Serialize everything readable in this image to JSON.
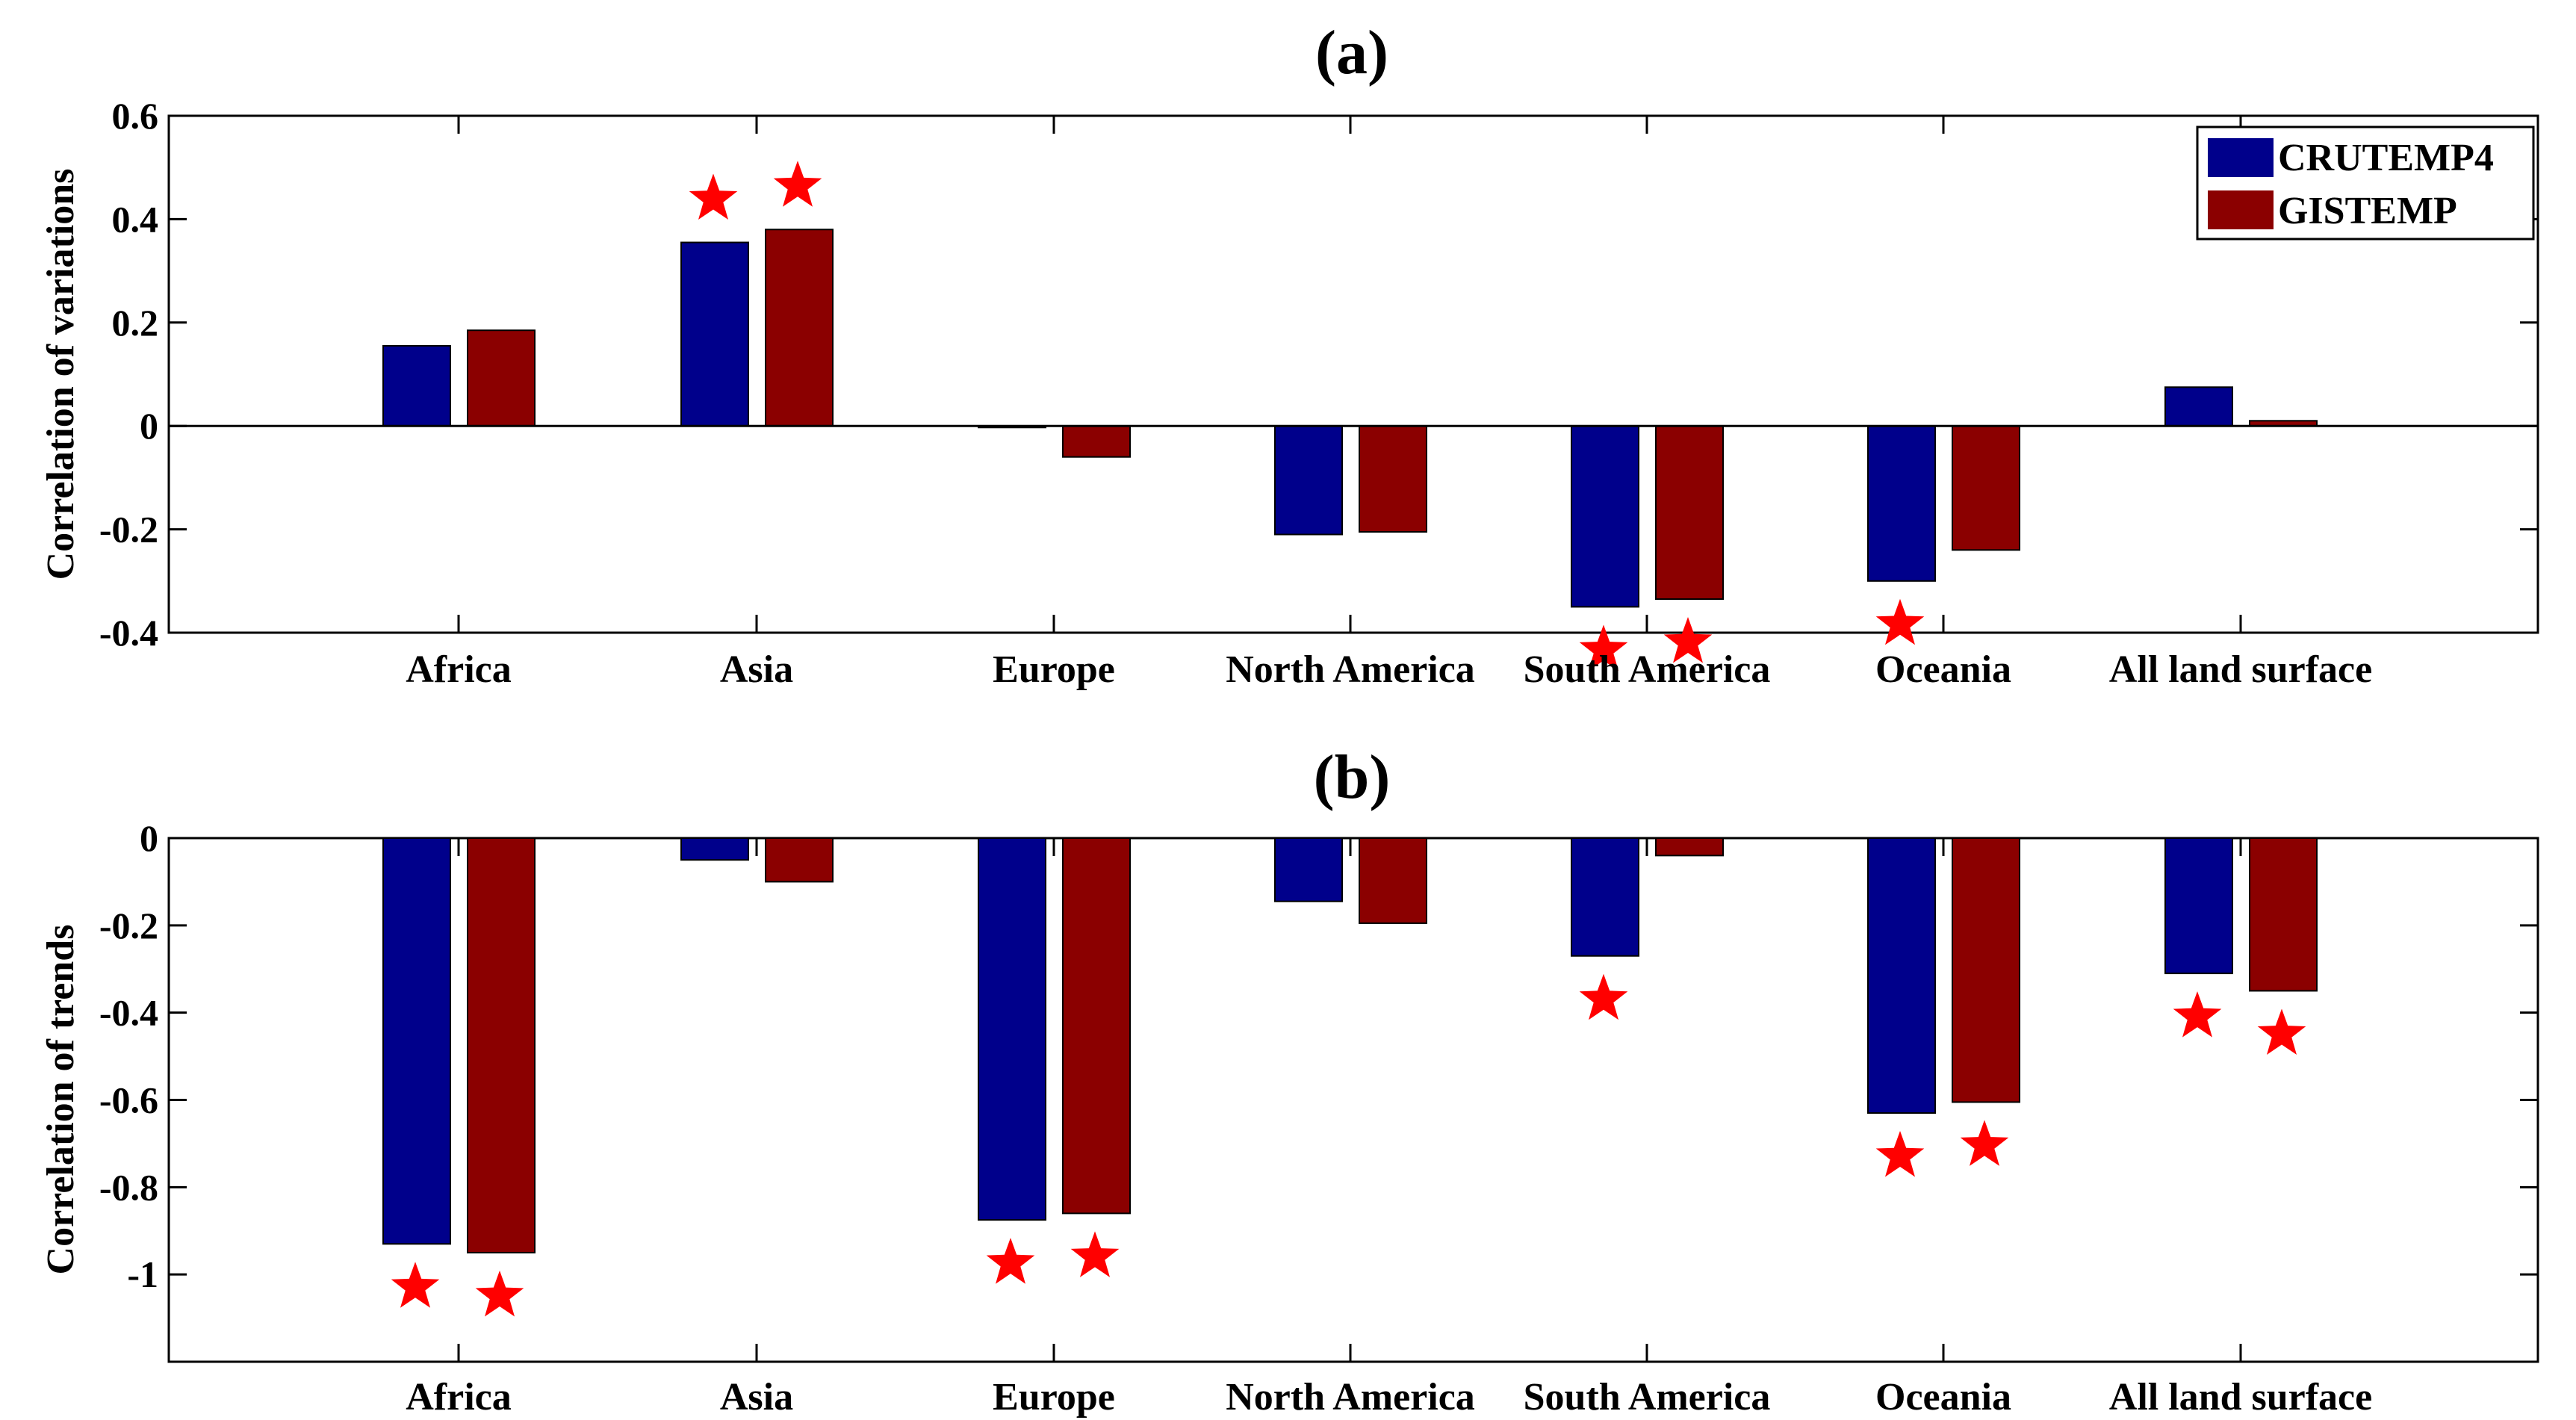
{
  "colors": {
    "CRUTEMP4": "#00008B",
    "GISTEMP": "#8B0000",
    "star": "#FF0000"
  },
  "legend": {
    "location": "top-right",
    "entries": [
      "CRUTEMP4",
      "GISTEMP"
    ]
  },
  "chart_data": [
    {
      "type": "bar",
      "panel": "(a)",
      "title": "(a)",
      "xlabel": "",
      "ylabel": "Correlation of variations",
      "ylim": [
        -0.4,
        0.6
      ],
      "yticks": [
        -0.4,
        -0.2,
        0,
        0.2,
        0.4,
        0.6
      ],
      "ytick_labels": [
        "-0.4",
        "-0.2",
        "0",
        "0.2",
        "0.4",
        "0.6"
      ],
      "categories": [
        "Africa",
        "Asia",
        "Europe",
        "North America",
        "South America",
        "Oceania",
        "All land surface"
      ],
      "series": [
        {
          "name": "CRUTEMP4",
          "values": [
            0.155,
            0.355,
            -0.003,
            -0.21,
            -0.35,
            -0.3,
            0.075
          ],
          "significant": [
            false,
            true,
            false,
            false,
            true,
            true,
            false
          ]
        },
        {
          "name": "GISTEMP",
          "values": [
            0.185,
            0.38,
            -0.06,
            -0.205,
            -0.335,
            -0.24,
            0.01
          ],
          "significant": [
            false,
            true,
            false,
            false,
            true,
            false,
            false
          ]
        }
      ],
      "annotations": "Red stars mark statistically significant correlations",
      "grid": false
    },
    {
      "type": "bar",
      "panel": "(b)",
      "title": "(b)",
      "xlabel": "",
      "ylabel": "Correlation of trends",
      "ylim": [
        -1.2,
        0
      ],
      "yticks": [
        -1,
        -0.8,
        -0.6,
        -0.4,
        -0.2,
        0
      ],
      "ytick_labels": [
        "-1",
        "-0.8",
        "-0.6",
        "-0.4",
        "-0.2",
        "0"
      ],
      "categories": [
        "Africa",
        "Asia",
        "Europe",
        "North America",
        "South America",
        "Oceania",
        "All land surface"
      ],
      "series": [
        {
          "name": "CRUTEMP4",
          "values": [
            -0.93,
            -0.05,
            -0.875,
            -0.145,
            -0.27,
            -0.63,
            -0.31
          ],
          "significant": [
            true,
            false,
            true,
            false,
            true,
            true,
            true
          ]
        },
        {
          "name": "GISTEMP",
          "values": [
            -0.95,
            -0.1,
            -0.86,
            -0.195,
            -0.04,
            -0.605,
            -0.35
          ],
          "significant": [
            true,
            false,
            true,
            false,
            false,
            true,
            true
          ]
        }
      ],
      "annotations": "Red stars mark statistically significant correlations",
      "grid": false
    }
  ]
}
